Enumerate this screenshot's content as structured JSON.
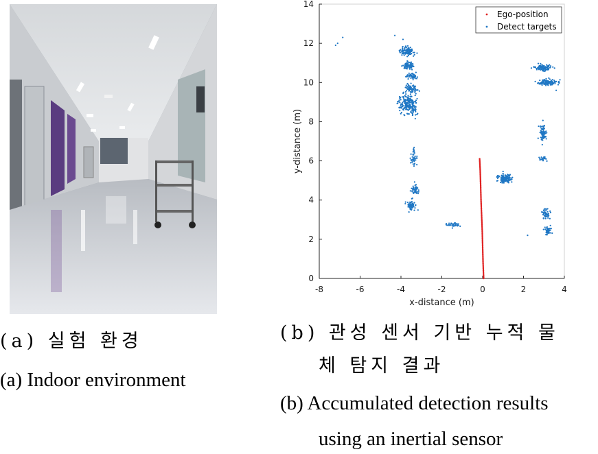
{
  "captions": {
    "a_ko": "(a) 실험 환경",
    "a_en": "(a) Indoor environment",
    "b_ko_line1": "(b) 관성 센서 기반 누적 물",
    "b_ko_line2": "체 탐지 결과",
    "b_en_line1": "(b) Accumulated detection results",
    "b_en_line2": "using an inertial sensor"
  },
  "chart_data": {
    "type": "scatter",
    "title": "",
    "xlabel": "x-distance (m)",
    "ylabel": "y-distance (m)",
    "xlim": [
      -8,
      4
    ],
    "ylim": [
      0,
      14
    ],
    "xticks": [
      -8,
      -6,
      -4,
      -2,
      0,
      2,
      4
    ],
    "yticks": [
      0,
      2,
      4,
      6,
      8,
      10,
      12,
      14
    ],
    "grid": false,
    "legend_position": "top-right",
    "series": [
      {
        "name": "Ego-position",
        "color": "#e02020",
        "marker": "dot",
        "points": [
          [
            0.05,
            0.0
          ],
          [
            0.02,
            0.8
          ],
          [
            0.0,
            1.6
          ],
          [
            -0.02,
            2.4
          ],
          [
            -0.05,
            3.2
          ],
          [
            -0.08,
            4.0
          ],
          [
            -0.1,
            4.8
          ],
          [
            -0.12,
            5.5
          ],
          [
            -0.15,
            6.15
          ]
        ]
      },
      {
        "name": "Detect targets",
        "color": "#1f77c4",
        "marker": "dot",
        "clusters": [
          {
            "cx": -3.7,
            "cy": 11.6,
            "sx": 0.3,
            "sy": 0.18,
            "n": 110
          },
          {
            "cx": -3.65,
            "cy": 10.85,
            "sx": 0.25,
            "sy": 0.15,
            "n": 80
          },
          {
            "cx": -3.5,
            "cy": 10.3,
            "sx": 0.25,
            "sy": 0.15,
            "n": 50
          },
          {
            "cx": -3.55,
            "cy": 9.7,
            "sx": 0.3,
            "sy": 0.18,
            "n": 70
          },
          {
            "cx": -3.65,
            "cy": 8.9,
            "sx": 0.4,
            "sy": 0.4,
            "n": 220
          },
          {
            "cx": -3.35,
            "cy": 6.2,
            "sx": 0.12,
            "sy": 0.35,
            "n": 45
          },
          {
            "cx": -3.3,
            "cy": 4.5,
            "sx": 0.15,
            "sy": 0.25,
            "n": 50
          },
          {
            "cx": -3.5,
            "cy": 3.7,
            "sx": 0.18,
            "sy": 0.25,
            "n": 60
          },
          {
            "cx": -1.45,
            "cy": 2.75,
            "sx": 0.25,
            "sy": 0.1,
            "n": 40
          },
          {
            "cx": 1.1,
            "cy": 5.1,
            "sx": 0.3,
            "sy": 0.2,
            "n": 130
          },
          {
            "cx": 3.0,
            "cy": 10.75,
            "sx": 0.4,
            "sy": 0.14,
            "n": 100
          },
          {
            "cx": 3.2,
            "cy": 10.0,
            "sx": 0.4,
            "sy": 0.15,
            "n": 100
          },
          {
            "cx": 2.95,
            "cy": 7.4,
            "sx": 0.15,
            "sy": 0.35,
            "n": 75
          },
          {
            "cx": 3.0,
            "cy": 6.1,
            "sx": 0.2,
            "sy": 0.1,
            "n": 20
          },
          {
            "cx": 3.1,
            "cy": 3.3,
            "sx": 0.15,
            "sy": 0.2,
            "n": 50
          },
          {
            "cx": 3.2,
            "cy": 2.45,
            "sx": 0.15,
            "sy": 0.2,
            "n": 45
          }
        ],
        "outliers": [
          [
            -7.1,
            12.0
          ],
          [
            -6.85,
            12.3
          ],
          [
            -4.3,
            12.4
          ],
          [
            -7.2,
            11.9
          ],
          [
            2.2,
            2.2
          ],
          [
            -3.9,
            12.2
          ],
          [
            3.6,
            9.6
          ]
        ]
      }
    ]
  }
}
